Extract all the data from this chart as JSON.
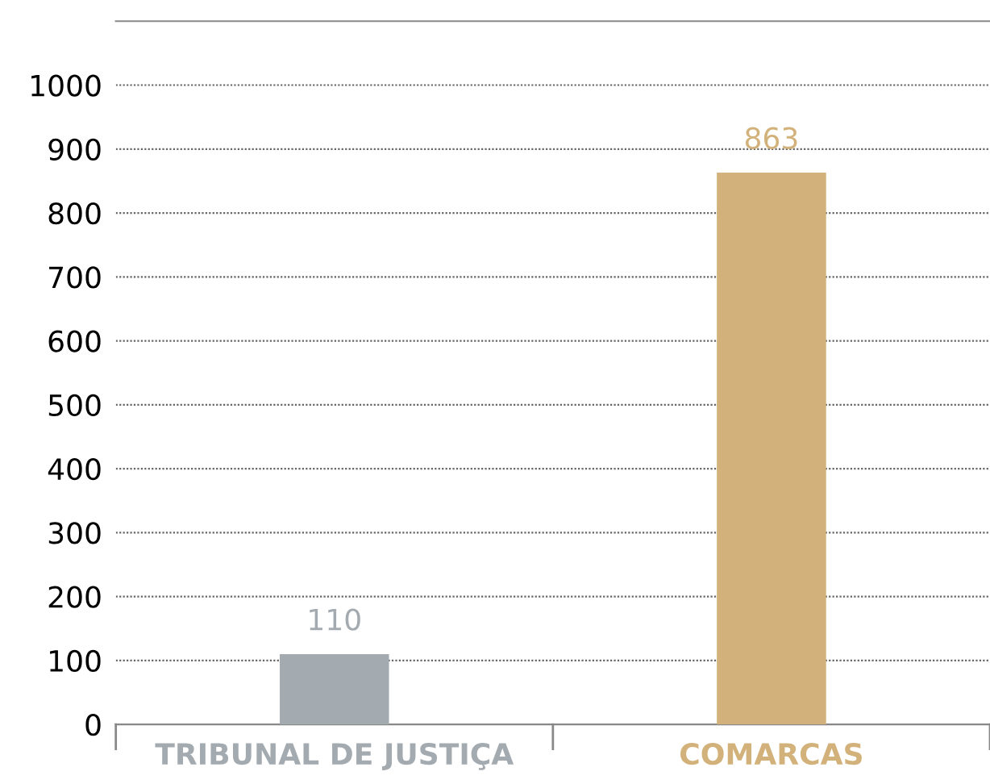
{
  "chart_data": {
    "type": "bar",
    "categories": [
      "TRIBUNAL DE JUSTIÇA",
      "COMARCAS"
    ],
    "values": [
      110,
      863
    ],
    "colors": [
      "#a3abb1",
      "#d2b27a"
    ],
    "ylim": [
      0,
      1100
    ],
    "yticks": [
      0,
      100,
      200,
      300,
      400,
      500,
      600,
      700,
      800,
      900,
      1000
    ],
    "grid": "y",
    "data_labels": true
  }
}
